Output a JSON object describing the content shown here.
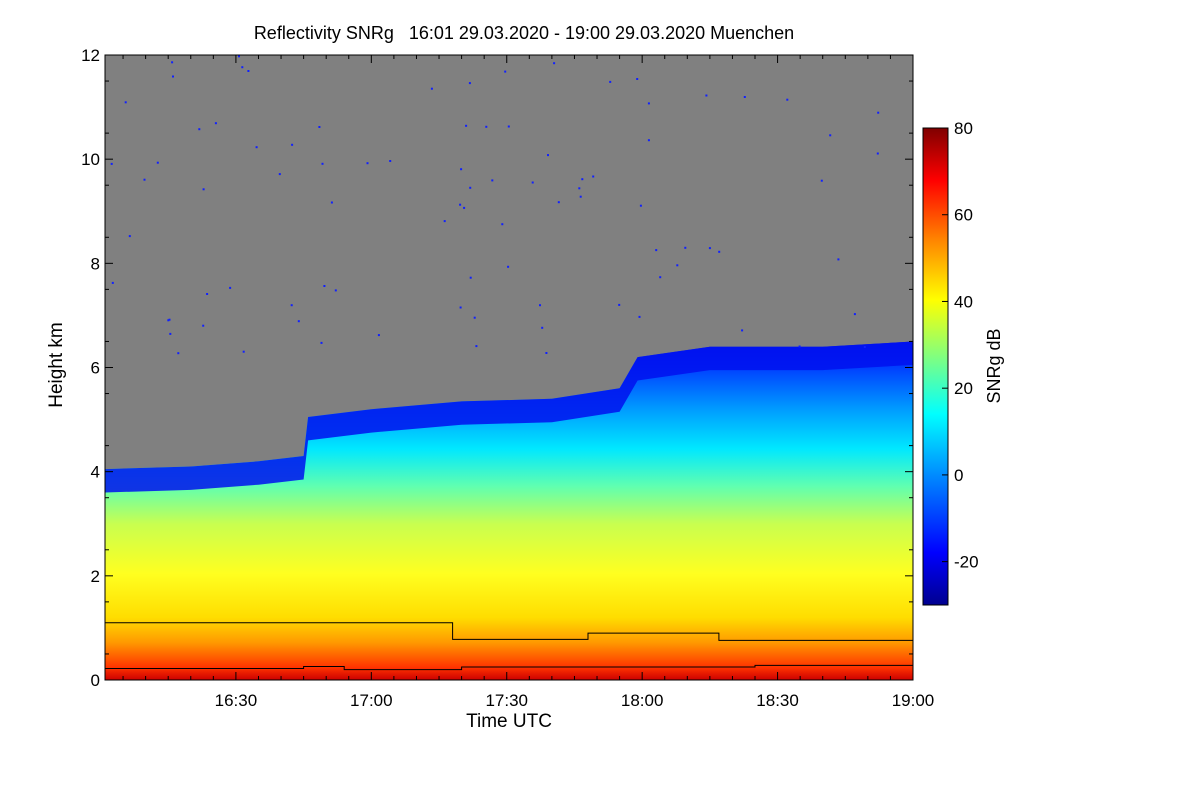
{
  "chart_data": {
    "type": "heatmap",
    "title": "Reflectivity SNRg   16:01 29.03.2020 - 19:00 29.03.2020 Muenchen",
    "xlabel": "Time UTC",
    "ylabel": "Height km",
    "x_range": [
      "16:01",
      "19:00"
    ],
    "ylim": [
      0,
      12
    ],
    "x_ticks": [
      "16:30",
      "17:00",
      "17:30",
      "18:00",
      "18:30",
      "19:00"
    ],
    "y_ticks": [
      "0",
      "2",
      "4",
      "6",
      "8",
      "10",
      "12"
    ],
    "colorbar": {
      "label": "SNRg dB",
      "range": [
        -30,
        80
      ],
      "ticks": [
        "-20",
        "0",
        "20",
        "40",
        "60",
        "80"
      ],
      "colormap": [
        "#00008f",
        "#0000ff",
        "#0080ff",
        "#00ffff",
        "#80ff80",
        "#ffff00",
        "#ff8000",
        "#ff0000",
        "#800000"
      ]
    },
    "background_color": "#808080",
    "echo_top_km": [
      {
        "t": "16:01",
        "h": 4.05
      },
      {
        "t": "16:20",
        "h": 4.1
      },
      {
        "t": "16:35",
        "h": 4.2
      },
      {
        "t": "16:45",
        "h": 4.3
      },
      {
        "t": "16:46",
        "h": 5.05
      },
      {
        "t": "17:00",
        "h": 5.2
      },
      {
        "t": "17:20",
        "h": 5.35
      },
      {
        "t": "17:40",
        "h": 5.4
      },
      {
        "t": "17:55",
        "h": 5.6
      },
      {
        "t": "17:59",
        "h": 6.2
      },
      {
        "t": "18:15",
        "h": 6.4
      },
      {
        "t": "18:40",
        "h": 6.4
      },
      {
        "t": "19:00",
        "h": 6.5
      }
    ],
    "lines": [
      {
        "name": "upper",
        "points": [
          [
            "16:01",
            1.1
          ],
          [
            "17:18",
            1.1
          ],
          [
            "17:18",
            0.78
          ],
          [
            "17:48",
            0.78
          ],
          [
            "17:48",
            0.9
          ],
          [
            "18:17",
            0.9
          ],
          [
            "18:17",
            0.76
          ],
          [
            "19:00",
            0.76
          ]
        ]
      },
      {
        "name": "lower",
        "points": [
          [
            "16:01",
            0.22
          ],
          [
            "16:45",
            0.22
          ],
          [
            "16:45",
            0.26
          ],
          [
            "16:54",
            0.26
          ],
          [
            "16:54",
            0.2
          ],
          [
            "17:20",
            0.2
          ],
          [
            "17:20",
            0.25
          ],
          [
            "18:25",
            0.25
          ],
          [
            "18:25",
            0.28
          ],
          [
            "19:00",
            0.28
          ]
        ]
      }
    ]
  }
}
